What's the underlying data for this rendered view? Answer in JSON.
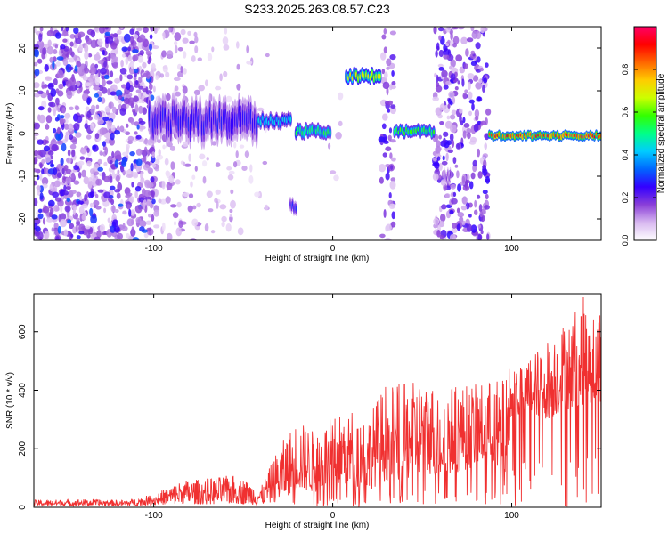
{
  "title": "S233.2025.263.08.57.C23",
  "chart_data": [
    {
      "type": "heatmap",
      "title": "S233.2025.263.08.57.C23",
      "xlabel": "Height of straight line (km)",
      "ylabel": "Frequency (Hz)",
      "xlim": [
        -167,
        150
      ],
      "ylim": [
        -25,
        25
      ],
      "xticks": [
        -100,
        0,
        100
      ],
      "yticks": [
        -20,
        -10,
        0,
        10,
        20
      ],
      "colorbar": {
        "label": "Normalized spectral amplitude",
        "range": [
          0,
          1
        ],
        "ticks": [
          0.0,
          0.2,
          0.4,
          0.6,
          0.8
        ],
        "colormap": [
          "#ffffff",
          "#d8b8f0",
          "#8a3fd8",
          "#3300ff",
          "#0066ff",
          "#00ccff",
          "#00ff88",
          "#33ff00",
          "#ccff00",
          "#ffcc00",
          "#ff6600",
          "#ff0000",
          "#ff0066"
        ]
      },
      "noise_regions": [
        {
          "x": [
            -167,
            -100
          ],
          "y": [
            -25,
            25
          ],
          "density": 0.9,
          "amp": 0.15
        },
        {
          "x": [
            -100,
            -75
          ],
          "y": [
            -25,
            25
          ],
          "density": 0.45,
          "amp": 0.12
        },
        {
          "x": [
            -75,
            -50
          ],
          "y": [
            -25,
            25
          ],
          "density": 0.2,
          "amp": 0.1
        },
        {
          "x": [
            -50,
            -35
          ],
          "y": [
            -20,
            20
          ],
          "density": 0.12,
          "amp": 0.1
        },
        {
          "x": [
            -5,
            5
          ],
          "y": [
            -25,
            25
          ],
          "density": 0.05,
          "amp": 0.1
        },
        {
          "x": [
            27,
            34
          ],
          "y": [
            -25,
            25
          ],
          "density": 0.75,
          "amp": 0.2
        },
        {
          "x": [
            57,
            87
          ],
          "y": [
            -25,
            25
          ],
          "density": 0.85,
          "amp": 0.2
        },
        {
          "x": [
            -167,
            -100
          ],
          "y": [
            -25,
            25
          ],
          "density": 0.35,
          "amp": 0.25
        }
      ],
      "signal_bands": [
        {
          "x": [
            -103,
            -42
          ],
          "y_center": 3,
          "y_halfwidth": 4.5,
          "amp": 0.28
        },
        {
          "x": [
            -42,
            -23
          ],
          "y_center": 3,
          "y_halfwidth": 1.6,
          "amp": 0.45
        },
        {
          "x": [
            -21,
            -1
          ],
          "y_center": 0.5,
          "y_halfwidth": 1.5,
          "amp": 0.55
        },
        {
          "x": [
            -24,
            -20
          ],
          "y_center": -17,
          "y_halfwidth": 1.6,
          "amp": 0.3
        },
        {
          "x": [
            7,
            27
          ],
          "y_center": 13.5,
          "y_halfwidth": 1.5,
          "amp": 0.75
        },
        {
          "x": [
            34,
            57
          ],
          "y_center": 0.5,
          "y_halfwidth": 1.3,
          "amp": 0.6
        },
        {
          "x": [
            87,
            150
          ],
          "y_center": -0.5,
          "y_halfwidth": 1.0,
          "amp": 0.92
        },
        {
          "x": [
            62,
            66
          ],
          "y_center": -10,
          "y_halfwidth": 1.5,
          "amp": 0.2
        }
      ]
    },
    {
      "type": "line",
      "xlabel": "Height of straight line (km)",
      "ylabel": "SNR (10 * v/v)",
      "xlim": [
        -167,
        150
      ],
      "ylim": [
        0,
        730
      ],
      "xticks": [
        -100,
        0,
        100
      ],
      "yticks": [
        0,
        200,
        400,
        600
      ],
      "series": [
        {
          "name": "SNR",
          "color": "#f03030",
          "x": [
            -167,
            -140,
            -115,
            -100,
            -85,
            -70,
            -55,
            -40,
            -30,
            -20,
            -10,
            0,
            10,
            20,
            30,
            40,
            50,
            60,
            70,
            80,
            90,
            95,
            100,
            110,
            120,
            130,
            140,
            150
          ],
          "envelope_low": [
            5,
            5,
            5,
            8,
            12,
            10,
            12,
            8,
            20,
            60,
            50,
            80,
            70,
            60,
            90,
            90,
            120,
            100,
            120,
            140,
            150,
            0,
            300,
            320,
            300,
            330,
            350,
            360
          ],
          "envelope_high": [
            25,
            28,
            25,
            45,
            90,
            100,
            110,
            70,
            210,
            300,
            260,
            310,
            340,
            320,
            430,
            420,
            440,
            420,
            420,
            420,
            440,
            440,
            500,
            520,
            580,
            640,
            720,
            700
          ],
          "min_level": [
            0,
            0,
            0,
            0,
            0,
            0,
            0,
            0,
            0,
            0,
            0,
            0,
            0,
            0,
            0,
            0,
            0,
            0,
            0,
            0,
            0,
            0,
            0,
            0,
            0,
            0,
            0,
            0
          ]
        }
      ]
    }
  ]
}
